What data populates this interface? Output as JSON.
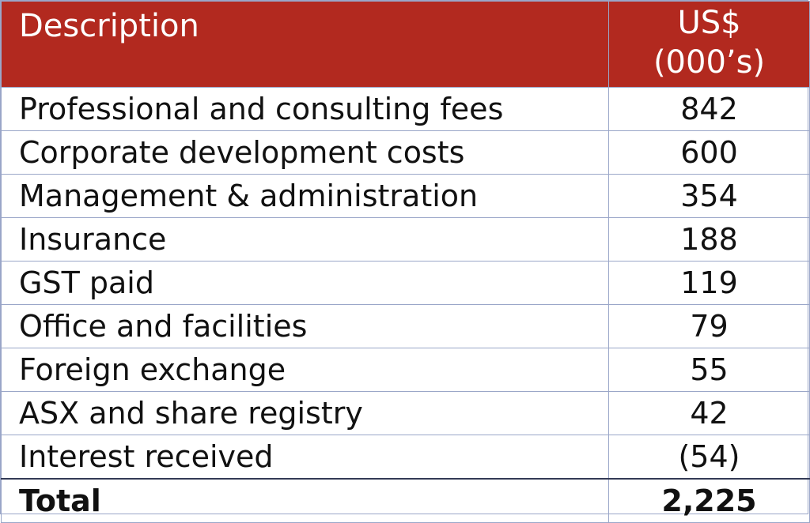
{
  "table": {
    "header": {
      "description": "Description",
      "value_line1": "US$",
      "value_line2": "(000’s)"
    },
    "rows": [
      {
        "label": "Professional and consulting fees",
        "value": "842"
      },
      {
        "label": "Corporate development costs",
        "value": "600"
      },
      {
        "label": "Management & administration",
        "value": "354"
      },
      {
        "label": "Insurance",
        "value": "188"
      },
      {
        "label": "GST paid",
        "value": "119"
      },
      {
        "label": "Office and facilities",
        "value": "79"
      },
      {
        "label": "Foreign exchange",
        "value": "55"
      },
      {
        "label": "ASX and share registry",
        "value": "42"
      },
      {
        "label": "Interest received",
        "value": "(54)"
      }
    ],
    "total": {
      "label": "Total",
      "value": "2,225"
    }
  },
  "colors": {
    "header_background": "#b2291f",
    "header_text": "#ffffff",
    "grid_lines": "#9aa6c8"
  }
}
